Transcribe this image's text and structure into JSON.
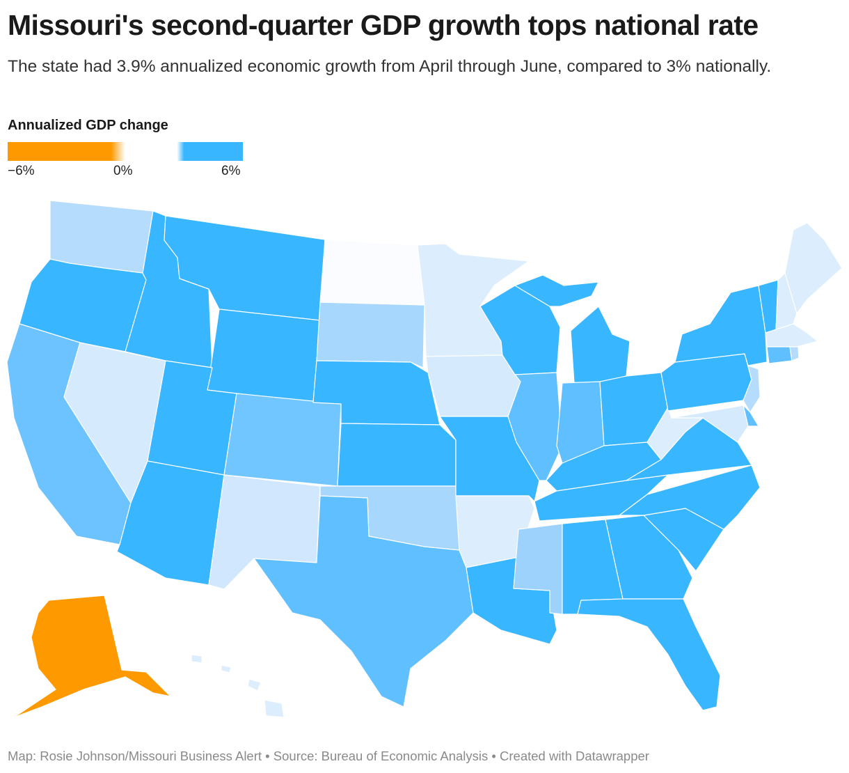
{
  "header": {
    "title": "Missouri's second-quarter GDP growth tops national rate",
    "subtitle": "The state had 3.9% annualized economic growth from April through June, compared to 3% nationally."
  },
  "legend": {
    "title": "Annualized GDP change",
    "ticks": [
      "−6%",
      "0%",
      "6%"
    ],
    "scale_min": -6,
    "scale_max": 6,
    "colors": {
      "negative": "#ff9900",
      "zero": "#ffffff",
      "positive": "#38b6ff"
    }
  },
  "map": {
    "region": "United States",
    "states": [
      {
        "name": "Washington",
        "fill": "#b5dcfd"
      },
      {
        "name": "Oregon",
        "fill": "#38b6ff"
      },
      {
        "name": "California",
        "fill": "#6cc3ff"
      },
      {
        "name": "Nevada",
        "fill": "#d6eafd"
      },
      {
        "name": "Idaho",
        "fill": "#38b6ff"
      },
      {
        "name": "Montana",
        "fill": "#38b6ff"
      },
      {
        "name": "Wyoming",
        "fill": "#38b6ff"
      },
      {
        "name": "Utah",
        "fill": "#38b6ff"
      },
      {
        "name": "Arizona",
        "fill": "#38b6ff"
      },
      {
        "name": "Colorado",
        "fill": "#72c6ff"
      },
      {
        "name": "New Mexico",
        "fill": "#d0e7fd"
      },
      {
        "name": "North Dakota",
        "fill": "#fafcff"
      },
      {
        "name": "South Dakota",
        "fill": "#a8d7fd"
      },
      {
        "name": "Nebraska",
        "fill": "#38b6ff"
      },
      {
        "name": "Kansas",
        "fill": "#38b6ff"
      },
      {
        "name": "Oklahoma",
        "fill": "#a8d7fd"
      },
      {
        "name": "Texas",
        "fill": "#60c0ff"
      },
      {
        "name": "Minnesota",
        "fill": "#dcedfd"
      },
      {
        "name": "Iowa",
        "fill": "#d6eafd"
      },
      {
        "name": "Missouri",
        "fill": "#38b6ff"
      },
      {
        "name": "Arkansas",
        "fill": "#dcedfd"
      },
      {
        "name": "Louisiana",
        "fill": "#38b6ff"
      },
      {
        "name": "Wisconsin",
        "fill": "#38b6ff"
      },
      {
        "name": "Illinois",
        "fill": "#60c0ff"
      },
      {
        "name": "Michigan",
        "fill": "#38b6ff"
      },
      {
        "name": "Indiana",
        "fill": "#60c0ff"
      },
      {
        "name": "Ohio",
        "fill": "#38b6ff"
      },
      {
        "name": "Kentucky",
        "fill": "#38b6ff"
      },
      {
        "name": "Tennessee",
        "fill": "#38b6ff"
      },
      {
        "name": "Mississippi",
        "fill": "#9dd2fd"
      },
      {
        "name": "Alabama",
        "fill": "#38b6ff"
      },
      {
        "name": "Georgia",
        "fill": "#38b6ff"
      },
      {
        "name": "Florida",
        "fill": "#38b6ff"
      },
      {
        "name": "South Carolina",
        "fill": "#38b6ff"
      },
      {
        "name": "North Carolina",
        "fill": "#38b6ff"
      },
      {
        "name": "Virginia",
        "fill": "#38b6ff"
      },
      {
        "name": "West Virginia",
        "fill": "#dcedfd"
      },
      {
        "name": "Pennsylvania",
        "fill": "#38b6ff"
      },
      {
        "name": "New York",
        "fill": "#38b6ff"
      },
      {
        "name": "Vermont",
        "fill": "#38b6ff"
      },
      {
        "name": "New Hampshire",
        "fill": "#dcedfd"
      },
      {
        "name": "Maine",
        "fill": "#dcedfd"
      },
      {
        "name": "Massachusetts",
        "fill": "#dcedfd"
      },
      {
        "name": "Connecticut",
        "fill": "#60c0ff"
      },
      {
        "name": "Rhode Island",
        "fill": "#b5dcfd"
      },
      {
        "name": "New Jersey",
        "fill": "#b5dcfd"
      },
      {
        "name": "Delaware",
        "fill": "#60c0ff"
      },
      {
        "name": "Maryland",
        "fill": "#d6eafd"
      },
      {
        "name": "Alaska",
        "fill": "#ff9900"
      },
      {
        "name": "Hawaii",
        "fill": "#dcedfd"
      }
    ]
  },
  "footer": {
    "credit": "Map: Rosie Johnson/Missouri Business Alert • Source: Bureau of Economic Analysis • Created with Datawrapper"
  }
}
